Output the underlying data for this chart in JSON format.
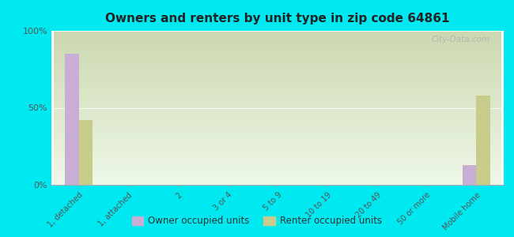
{
  "title": "Owners and renters by unit type in zip code 64861",
  "categories": [
    "1, detached",
    "1, attached",
    "2",
    "3 or 4",
    "5 to 9",
    "10 to 19",
    "20 to 49",
    "50 or more",
    "Mobile home"
  ],
  "owner_values": [
    85,
    0,
    0,
    0,
    0,
    0,
    0,
    0,
    13
  ],
  "renter_values": [
    42,
    0,
    0,
    0,
    0,
    0,
    0,
    0,
    58
  ],
  "owner_color": "#c8aed4",
  "renter_color": "#c8cc8a",
  "background_outer": "#00e8f0",
  "ylim": [
    0,
    100
  ],
  "yticks": [
    0,
    50,
    100
  ],
  "ytick_labels": [
    "0%",
    "50%",
    "100%"
  ],
  "bar_width": 0.28,
  "legend_owner": "Owner occupied units",
  "legend_renter": "Renter occupied units",
  "watermark": "City-Data.com",
  "grid_color": "#e0e8d0",
  "plot_bg_top": "#ccd8b0",
  "plot_bg_bottom": "#eef8e8"
}
